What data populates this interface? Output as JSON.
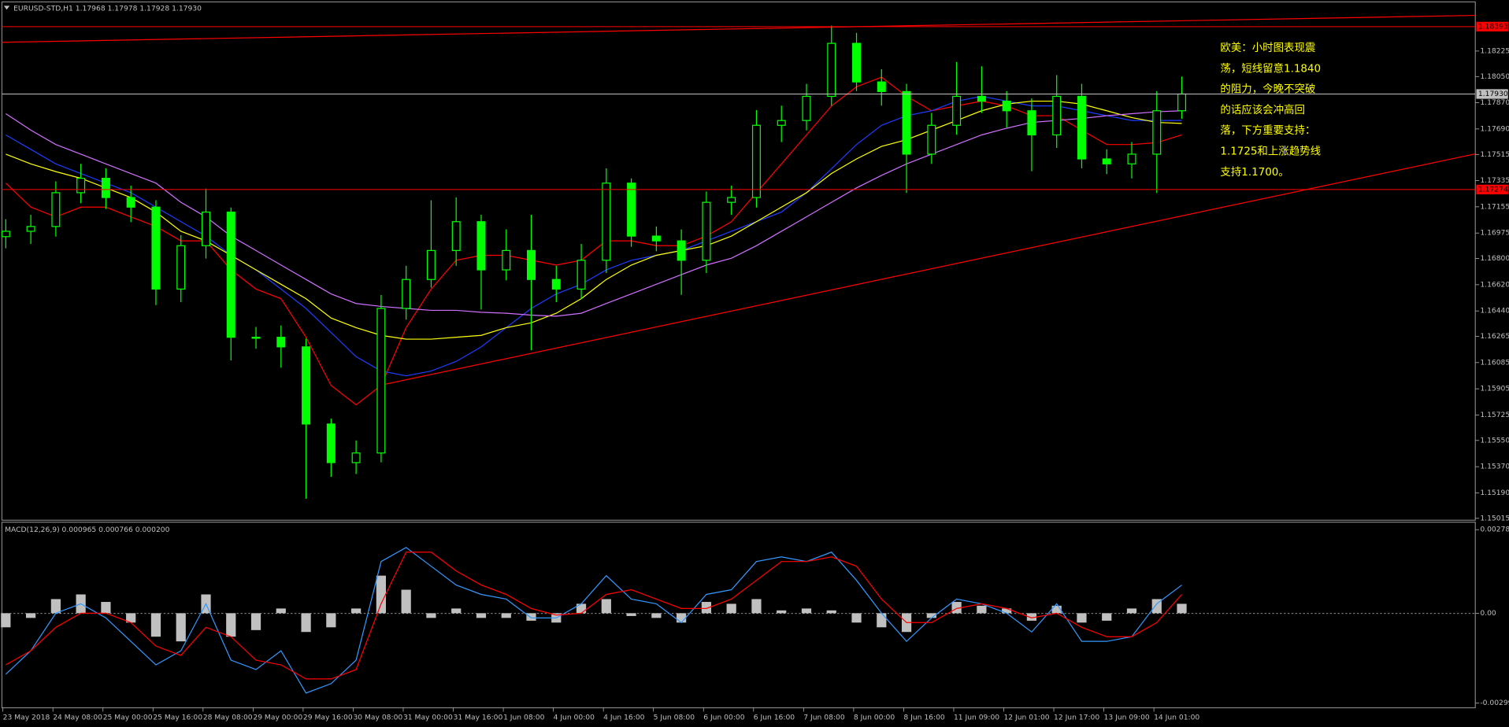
{
  "chart_data": [
    {
      "type": "candlestick",
      "title": "EURUSD-STD,H1  1.17968 1.17978 1.17928 1.17930",
      "categories": [
        "23 May 2018",
        null,
        "24 May 08:00",
        null,
        "25 May 00:00",
        null,
        "25 May 16:00",
        null,
        "28 May 08:00",
        null,
        "29 May 00:00",
        null,
        "29 May 16:00",
        null,
        "30 May 08:00",
        null,
        "31 May 00:00",
        null,
        "31 May 16:00",
        null,
        "1 Jun 08:00",
        null,
        "4 Jun 00:00",
        null,
        "4 Jun 16:00",
        null,
        "5 Jun 08:00",
        null,
        "6 Jun 00:00",
        null,
        "6 Jun 16:00",
        null,
        "7 Jun 08:00",
        null,
        "8 Jun 00:00",
        null,
        "8 Jun 16:00",
        null,
        "11 Jun 09:00",
        null,
        "12 Jun 01:00",
        null,
        "12 Jun 17:00",
        null,
        "13 Jun 09:00",
        null,
        "14 Jun 01:00",
        null
      ],
      "open": [
        1.1695,
        1.16987,
        1.1702,
        1.17252,
        1.17351,
        1.17219,
        1.17153,
        1.1659,
        1.16888,
        1.17119,
        1.16259,
        1.16259,
        1.16193,
        1.15663,
        1.15398,
        1.15464,
        1.16457,
        1.16656,
        1.16855,
        1.17053,
        1.16722,
        1.16855,
        1.16656,
        1.1659,
        1.16788,
        1.17318,
        1.16954,
        1.16921,
        1.16788,
        1.17186,
        1.17219,
        1.17715,
        1.17748,
        1.17914,
        1.18278,
        1.18013,
        1.17947,
        1.17517,
        1.17715,
        1.17914,
        1.17881,
        1.17815,
        1.17649,
        1.17914,
        1.17484,
        1.1745,
        1.17517,
        1.17815
      ],
      "high": [
        1.1707,
        1.171,
        1.1733,
        1.1745,
        1.1742,
        1.173,
        1.172,
        1.1696,
        1.1728,
        1.1715,
        1.1633,
        1.1634,
        1.1625,
        1.157,
        1.1555,
        1.1655,
        1.1675,
        1.172,
        1.1722,
        1.171,
        1.17,
        1.171,
        1.1675,
        1.169,
        1.1742,
        1.1735,
        1.1702,
        1.17,
        1.1726,
        1.173,
        1.1782,
        1.1785,
        1.18,
        1.184,
        1.1835,
        1.181,
        1.18,
        1.178,
        1.1815,
        1.1812,
        1.1795,
        1.179,
        1.1806,
        1.18,
        1.1755,
        1.176,
        1.1795,
        1.1805
      ],
      "low": [
        1.1687,
        1.169,
        1.1695,
        1.1718,
        1.1714,
        1.1705,
        1.1648,
        1.165,
        1.168,
        1.161,
        1.1618,
        1.1605,
        1.1515,
        1.153,
        1.1532,
        1.154,
        1.1638,
        1.166,
        1.1675,
        1.1645,
        1.1665,
        1.1617,
        1.165,
        1.1652,
        1.167,
        1.1688,
        1.1685,
        1.1655,
        1.167,
        1.171,
        1.1715,
        1.176,
        1.1768,
        1.1785,
        1.1795,
        1.1785,
        1.1725,
        1.1745,
        1.1765,
        1.178,
        1.177,
        1.174,
        1.1756,
        1.1742,
        1.1738,
        1.1735,
        1.1725,
        1.1776
      ],
      "close": [
        1.16987,
        1.1702,
        1.17252,
        1.17351,
        1.17219,
        1.17153,
        1.1659,
        1.16888,
        1.17119,
        1.16259,
        1.16259,
        1.16193,
        1.15663,
        1.15398,
        1.15464,
        1.16457,
        1.16656,
        1.16855,
        1.17053,
        1.16722,
        1.16855,
        1.16656,
        1.1659,
        1.16788,
        1.17318,
        1.16954,
        1.16921,
        1.16788,
        1.17186,
        1.17219,
        1.17715,
        1.17748,
        1.17914,
        1.18278,
        1.18013,
        1.17947,
        1.17517,
        1.17715,
        1.17914,
        1.17881,
        1.17815,
        1.17649,
        1.17914,
        1.17484,
        1.1745,
        1.17517,
        1.17815,
        1.1793
      ],
      "color": "#00ff00",
      "lines": [
        {
          "color": "#ff0000",
          "values": [
            1.17318,
            1.17153,
            1.17086,
            1.17153,
            1.17153,
            1.17086,
            1.1702,
            1.16921,
            1.16921,
            1.16722,
            1.1659,
            1.16524,
            1.16259,
            1.15928,
            1.15795,
            1.15928,
            1.16325,
            1.1659,
            1.16788,
            1.16822,
            1.16822,
            1.16788,
            1.16755,
            1.16788,
            1.16921,
            1.16921,
            1.16888,
            1.16888,
            1.16954,
            1.17053,
            1.17252,
            1.1745,
            1.17649,
            1.17848,
            1.1798,
            1.18046,
            1.17914,
            1.17815,
            1.17848,
            1.17881,
            1.17848,
            1.17781,
            1.17781,
            1.17682,
            1.17583,
            1.17583,
            1.17596,
            1.17649
          ]
        },
        {
          "color": "#1e3cff",
          "values": [
            1.17649,
            1.1755,
            1.1745,
            1.17384,
            1.17318,
            1.17252,
            1.17153,
            1.17053,
            1.16954,
            1.16822,
            1.16722,
            1.1659,
            1.16457,
            1.16292,
            1.16126,
            1.16027,
            1.15994,
            1.16027,
            1.16093,
            1.16193,
            1.16325,
            1.16457,
            1.16557,
            1.16623,
            1.16722,
            1.16788,
            1.16822,
            1.16855,
            1.16921,
            1.16987,
            1.17053,
            1.17119,
            1.17252,
            1.17417,
            1.17583,
            1.17715,
            1.17781,
            1.17815,
            1.17881,
            1.17914,
            1.17881,
            1.17848,
            1.17848,
            1.17815,
            1.17781,
            1.17748,
            1.17748,
            1.17748
          ]
        },
        {
          "color": "#ffff00",
          "values": [
            1.17517,
            1.1745,
            1.17397,
            1.17351,
            1.17285,
            1.17219,
            1.17119,
            1.16987,
            1.16921,
            1.16822,
            1.16722,
            1.16623,
            1.16524,
            1.16391,
            1.16325,
            1.16272,
            1.16246,
            1.16246,
            1.16259,
            1.16272,
            1.16325,
            1.16358,
            1.16424,
            1.16524,
            1.16656,
            1.16755,
            1.16822,
            1.16855,
            1.16888,
            1.16954,
            1.17053,
            1.17153,
            1.17252,
            1.17384,
            1.17484,
            1.1757,
            1.17616,
            1.17682,
            1.17748,
            1.17815,
            1.17861,
            1.17881,
            1.17881,
            1.17861,
            1.17815,
            1.17768,
            1.17735,
            1.17728
          ]
        },
        {
          "color": "#d070ff",
          "values": [
            1.17795,
            1.17682,
            1.17583,
            1.17517,
            1.1745,
            1.17384,
            1.17318,
            1.17186,
            1.17086,
            1.16954,
            1.16855,
            1.16755,
            1.16656,
            1.16557,
            1.16491,
            1.16471,
            1.16457,
            1.16444,
            1.16444,
            1.16431,
            1.16424,
            1.16411,
            1.16404,
            1.16424,
            1.16491,
            1.16557,
            1.16623,
            1.16689,
            1.16755,
            1.16802,
            1.16888,
            1.16987,
            1.17086,
            1.17186,
            1.17285,
            1.17371,
            1.1745,
            1.17517,
            1.17583,
            1.17649,
            1.17695,
            1.17735,
            1.17748,
            1.17762,
            1.17781,
            1.17795,
            1.17808,
            1.17815
          ]
        }
      ],
      "ylim": [
        1.15002,
        1.18556
      ],
      "yticks": [
        1.18225,
        {
          "value": 1.1805,
          "label": "1.18050"
        },
        {
          "value": 1.1787,
          "label": "1.17870"
        },
        {
          "value": 1.1769,
          "label": "1.17690"
        },
        1.17515,
        1.17335,
        1.17155,
        1.16975,
        {
          "value": 1.168,
          "label": "1.16800"
        },
        {
          "value": 1.1662,
          "label": "1.16620"
        },
        {
          "value": 1.1644,
          "label": "1.16440"
        },
        1.16265,
        1.16085,
        1.15905,
        1.15725,
        {
          "value": 1.1555,
          "label": "1.15550"
        },
        {
          "value": 1.1537,
          "label": "1.15370"
        },
        {
          "value": 1.1519,
          "label": "1.15190"
        },
        1.15015
      ],
      "price_lines": [
        {
          "value": 1.18393,
          "label": "1.18393",
          "color": "#ff0000"
        },
        {
          "value": 1.1793,
          "label": "1.17930",
          "color": "#c0c0c0"
        },
        {
          "value": 1.17274,
          "label": "1.17274",
          "color": "#ff0000"
        }
      ],
      "annotation": [
        "欧美：小时图表现震",
        "荡，短线留意1.1840",
        "的阻力，今晚不突破",
        "的话应该会冲高回",
        "落，下方重要支持：",
        "1.1725和上涨趋势线",
        "支持1.1700。"
      ],
      "annotation_color": "#ffff00"
    },
    {
      "type": "macd",
      "title": "MACD(12,26,9) 0.000965 0.000766 0.000200",
      "histogram": {
        "color": "#c0c0c0",
        "values": [
          -0.00047,
          -0.000157,
          0.00047,
          0.000626,
          0.000376,
          -0.000313,
          -0.000783,
          -0.000939,
          0.000626,
          -0.000783,
          -0.000563,
          0.000157,
          -0.000626,
          -0.00047,
          0.000157,
          0.001252,
          0.000783,
          -0.000157,
          0.000157,
          -0.000157,
          -0.000157,
          -0.00025,
          -0.000313,
          0.000313,
          0.00047,
          -9.4e-05,
          -0.000157,
          -0.000313,
          0.000376,
          0.000313,
          0.00047,
          9.4e-05,
          0.000157,
          9.4e-05,
          -0.000313,
          -0.00047,
          -0.000626,
          -0.000157,
          0.000376,
          0.00025,
          0.000157,
          -0.00025,
          0.00025,
          -0.000313,
          -0.00025,
          0.000157,
          0.00047,
          0.000313
        ]
      },
      "lines": [
        {
          "color": "#3399ff",
          "values": [
            -0.002035,
            -0.001252,
            0,
            0.000313,
            -0.000157,
            -0.000939,
            -0.001722,
            -0.001252,
            0.000313,
            -0.001565,
            -0.001878,
            -0.001252,
            -0.002661,
            -0.002348,
            -0.001565,
            0.001722,
            0.002191,
            0.001565,
            0.000939,
            0.000626,
            0.00047,
            -0.000157,
            -0.000157,
            0.000313,
            0.001252,
            0.00047,
            0.000313,
            -0.000313,
            0.000626,
            0.000783,
            0.001722,
            0.001878,
            0.001722,
            0.002035,
            0.001096,
            0,
            -0.000939,
            -0.000157,
            0.00047,
            0.000313,
            0,
            -0.000626,
            0.000313,
            -0.000939,
            -0.000939,
            -0.000783,
            0.000313,
            0.000939
          ]
        },
        {
          "color": "#ff0000",
          "values": [
            -0.001722,
            -0.001252,
            -0.00047,
            0,
            0,
            -0.000313,
            -0.001096,
            -0.001409,
            -0.00047,
            -0.000783,
            -0.001565,
            -0.001722,
            -0.002191,
            -0.002191,
            -0.001878,
            0.000313,
            0.002035,
            0.002035,
            0.001409,
            0.000939,
            0.000626,
            0.000157,
            -6.3e-05,
            0,
            0.000626,
            0.000783,
            0.00047,
            0.000157,
            0.000157,
            0.00047,
            0.001096,
            0.001722,
            0.001722,
            0.001878,
            0.001565,
            0.00047,
            -0.000313,
            -0.000313,
            0.000157,
            0.000313,
            0.000157,
            -0.000157,
            0,
            -0.00047,
            -0.000783,
            -0.000783,
            -0.000313,
            0.000626
          ]
        }
      ],
      "ylim": [
        -0.00312,
        0.00297
      ],
      "yticks": [
        0.002784,
        {
          "value": 0,
          "label": "0.00"
        },
        -0.002998
      ]
    }
  ]
}
